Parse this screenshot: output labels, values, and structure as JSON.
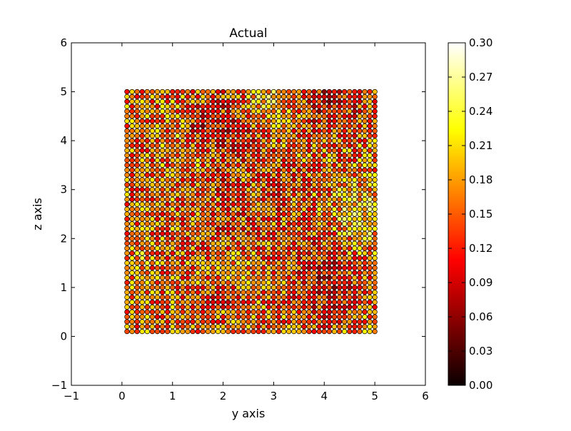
{
  "chart_data": {
    "type": "scatter",
    "title": "Actual",
    "xlabel": "y axis",
    "ylabel": "z axis",
    "xlim": [
      -1,
      6
    ],
    "ylim": [
      -1,
      6
    ],
    "xticks": [
      "−1",
      "0",
      "1",
      "2",
      "3",
      "4",
      "5",
      "6"
    ],
    "yticks": [
      "−1",
      "0",
      "1",
      "2",
      "3",
      "4",
      "5",
      "6"
    ],
    "grid": false,
    "colormap": "hot",
    "marker_edge_color": "#000000",
    "colorbar": {
      "range": [
        0.0,
        0.3
      ],
      "ticks": [
        "0.00",
        "0.03",
        "0.06",
        "0.09",
        "0.12",
        "0.15",
        "0.18",
        "0.21",
        "0.24",
        "0.27",
        "0.30"
      ]
    },
    "points": {
      "x_range": [
        0.1,
        5.0
      ],
      "y_range": [
        0.1,
        5.0
      ],
      "columns": 50,
      "rows": 50,
      "value_range": [
        0.04,
        0.3
      ],
      "typical_value": 0.16
    }
  }
}
